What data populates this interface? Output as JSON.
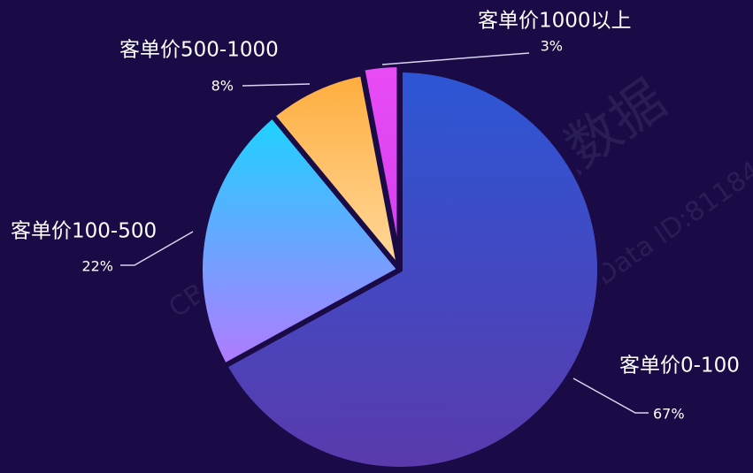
{
  "chart_data": {
    "type": "pie",
    "categories": [
      "客单价0-100",
      "客单价100-500",
      "客单价500-1000",
      "客单价1000以上"
    ],
    "values": [
      67,
      22,
      8,
      3
    ],
    "value_labels": [
      "67%",
      "22%",
      "8%",
      "3%"
    ],
    "colors": [
      [
        "#2c57d6",
        "#5a3aac"
      ],
      [
        "#1cd3ff",
        "#b27aff"
      ],
      [
        "#ffad3d",
        "#ffd99e"
      ],
      [
        "#e94cf5",
        "#d63df0"
      ]
    ],
    "watermarks": [
      "CBNData ID:81184",
      "千瓜数据"
    ]
  }
}
